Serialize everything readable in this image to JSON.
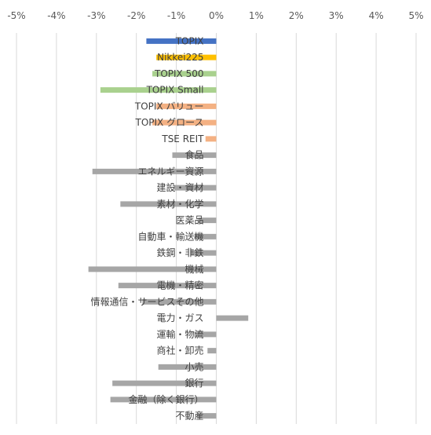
{
  "chart_data": {
    "type": "bar",
    "orientation": "horizontal",
    "title": "",
    "xlabel": "",
    "ylabel": "",
    "xlim": [
      -5,
      5
    ],
    "x_ticks": [
      "-5%",
      "-4%",
      "-3%",
      "-2%",
      "-1%",
      "0%",
      "1%",
      "2%",
      "3%",
      "4%",
      "5%"
    ],
    "x_axis_position": "top",
    "grid": true,
    "legend": "none",
    "colors": {
      "topix": "#4472C4",
      "nikkei": "#FFC000",
      "size_index": "#A9D18E",
      "style_index": "#F4B183",
      "sector": "#A6A6A6",
      "grid": "#D9D9D9"
    },
    "categories": [
      "TOPIX",
      "Nikkei225",
      "TOPIX 500",
      "TOPIX Small",
      "TOPIX バリュー",
      "TOPIX グロース",
      "TSE REIT",
      "食品",
      "エネルギー資源",
      "建設・資材",
      "素材・化学",
      "医薬品",
      "自動車・輸送機",
      "鉄鋼・非鉄",
      "機械",
      "電機・精密",
      "情報通信・サービスその他",
      "電力・ガス",
      "運輸・物流",
      "商社・卸売",
      "小売",
      "銀行",
      "金融（除く銀行）",
      "不動産"
    ],
    "values": [
      -1.75,
      -1.5,
      -1.6,
      -2.9,
      -1.5,
      -1.6,
      -0.27,
      -1.1,
      -3.1,
      -1.05,
      -2.4,
      -0.45,
      -0.55,
      -0.65,
      -3.2,
      -2.45,
      -1.85,
      0.8,
      -0.55,
      -0.22,
      -1.45,
      -2.6,
      -2.65,
      -0.48
    ],
    "bar_colors": [
      "topix",
      "nikkei",
      "size_index",
      "size_index",
      "style_index",
      "style_index",
      "style_index",
      "sector",
      "sector",
      "sector",
      "sector",
      "sector",
      "sector",
      "sector",
      "sector",
      "sector",
      "sector",
      "sector",
      "sector",
      "sector",
      "sector",
      "sector",
      "sector",
      "sector"
    ]
  }
}
